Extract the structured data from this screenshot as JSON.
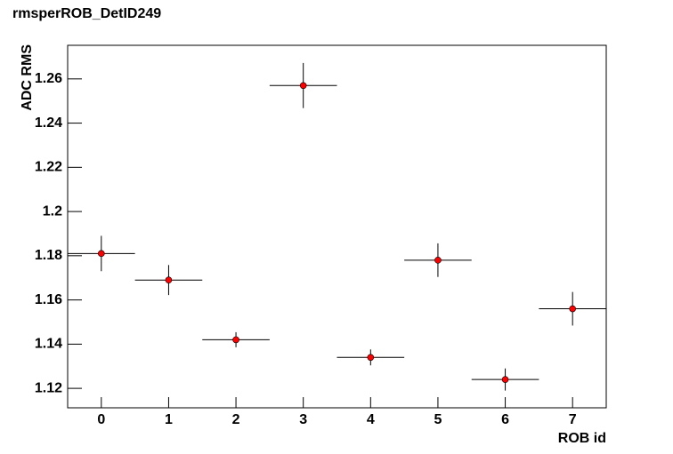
{
  "chart_data": {
    "type": "errorbar",
    "title": "rmsperROB_DetID249",
    "x_label": "ROB id",
    "y_label": "ADC RMS",
    "x": [
      0,
      1,
      2,
      3,
      4,
      5,
      6,
      7
    ],
    "values": [
      1.181,
      1.169,
      1.142,
      1.257,
      1.134,
      1.178,
      1.124,
      1.156
    ],
    "yerr": [
      0.008,
      0.0068,
      0.0034,
      0.0102,
      0.0036,
      0.0076,
      0.005,
      0.0076
    ],
    "xerr": [
      0.5,
      0.5,
      0.5,
      0.5,
      0.5,
      0.5,
      0.5,
      0.5
    ],
    "color": "#ff0000",
    "xlim": [
      -0.5,
      7.5
    ],
    "ylim": [
      1.1112,
      1.2752
    ],
    "xticks": [
      0,
      1,
      2,
      3,
      4,
      5,
      6,
      7
    ],
    "yticks": [
      1.12,
      1.14,
      1.16,
      1.18,
      1.2,
      1.22,
      1.24,
      1.26
    ]
  }
}
